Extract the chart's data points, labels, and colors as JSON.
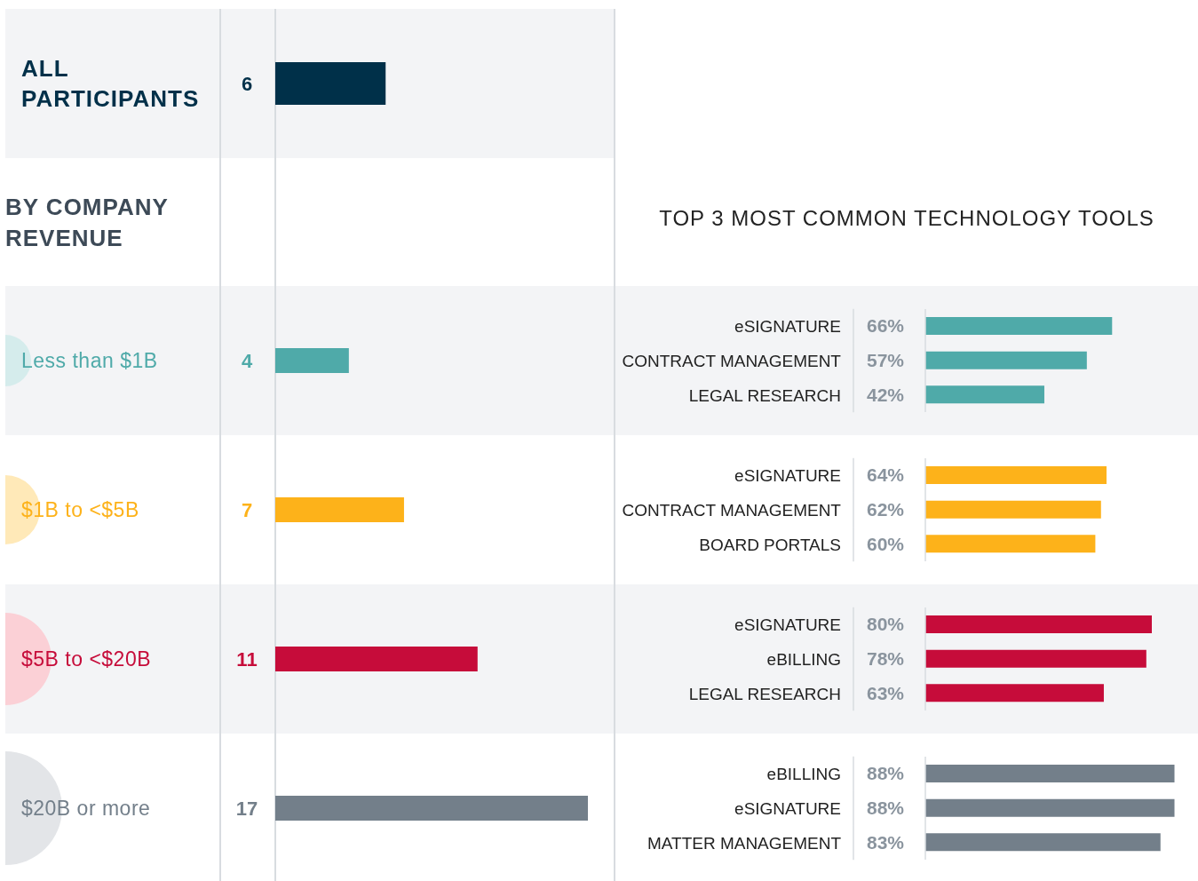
{
  "chart_data": [
    {
      "type": "bar",
      "orientation": "horizontal",
      "subtitle": "BY COMPANY REVENUE",
      "categories": [
        "ALL PARTICIPANTS",
        "Less than $1B",
        "$1B to <$5B",
        "$5B to <$20B",
        "$20B or more"
      ],
      "values": [
        6,
        4,
        7,
        11,
        17
      ],
      "colors": [
        "#003049",
        "#4faaa9",
        "#fdb21a",
        "#c60c3a",
        "#737f8a"
      ],
      "data_labels": true,
      "tick_labels": "y",
      "legend": false
    },
    {
      "type": "bar",
      "orientation": "horizontal",
      "title": "TOP 3 MOST COMMON TECHNOLOGY TOOLS",
      "categories": [
        "eSIGNATURE",
        "CONTRACT MANAGEMENT",
        "LEGAL RESEARCH"
      ],
      "values": [
        66,
        57,
        42
      ],
      "value_labels": [
        "66%",
        "57%",
        "42%"
      ],
      "color": "#4faaa9",
      "tick_labels": "y",
      "legend": false
    },
    {
      "type": "bar",
      "orientation": "horizontal",
      "categories": [
        "eSIGNATURE",
        "CONTRACT MANAGEMENT",
        "BOARD PORTALS"
      ],
      "values": [
        64,
        62,
        60
      ],
      "value_labels": [
        "64%",
        "62%",
        "60%"
      ],
      "color": "#fdb21a",
      "tick_labels": "y",
      "legend": false
    },
    {
      "type": "bar",
      "orientation": "horizontal",
      "categories": [
        "eSIGNATURE",
        "eBILLING",
        "LEGAL RESEARCH"
      ],
      "values": [
        80,
        78,
        63
      ],
      "value_labels": [
        "80%",
        "78%",
        "63%"
      ],
      "color": "#c60c3a",
      "tick_labels": "y",
      "legend": false
    },
    {
      "type": "bar",
      "orientation": "horizontal",
      "categories": [
        "eBILLING",
        "eSIGNATURE",
        "MATTER MANAGEMENT"
      ],
      "values": [
        88,
        88,
        83
      ],
      "value_labels": [
        "88%",
        "88%",
        "83%"
      ],
      "color": "#737f8a",
      "tick_labels": "y",
      "legend": false
    }
  ]
}
